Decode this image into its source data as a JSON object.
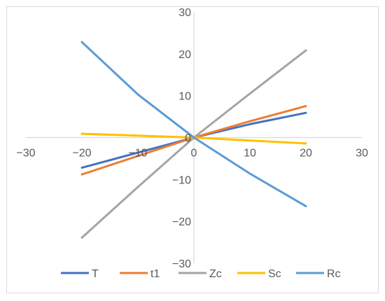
{
  "chart_data": {
    "type": "line",
    "title": "",
    "xlabel": "",
    "ylabel": "",
    "xlim": [
      -30,
      30
    ],
    "ylim": [
      -30,
      30
    ],
    "xticks": [
      -30,
      -20,
      -10,
      0,
      10,
      20,
      30
    ],
    "yticks": [
      -30,
      -20,
      -10,
      0,
      10,
      20,
      30
    ],
    "xtick_labels": [
      "−30",
      "−20",
      "−10",
      "0",
      "10",
      "20",
      "30"
    ],
    "ytick_labels": [
      "−30",
      "−20",
      "−10",
      "0",
      "10",
      "20",
      "30"
    ],
    "grid": false,
    "legend_position": "bottom",
    "x": [
      -20,
      -10,
      0,
      10,
      20
    ],
    "series": [
      {
        "name": "T",
        "color": "#4472C4",
        "values": [
          -7.2,
          -3.6,
          0,
          3.2,
          5.9
        ]
      },
      {
        "name": "t1",
        "color": "#ED7D31",
        "values": [
          -8.8,
          -4.4,
          0,
          3.9,
          7.5
        ]
      },
      {
        "name": "Zc",
        "color": "#A5A5A5",
        "values": [
          -23.9,
          -11.8,
          0,
          10.5,
          20.8
        ]
      },
      {
        "name": "Sc",
        "color": "#FFC000",
        "values": [
          0.9,
          0.45,
          0,
          -0.7,
          -1.4
        ]
      },
      {
        "name": "Rc",
        "color": "#5B9BD5",
        "values": [
          22.8,
          10.3,
          0,
          -8.6,
          -16.4
        ]
      }
    ]
  }
}
